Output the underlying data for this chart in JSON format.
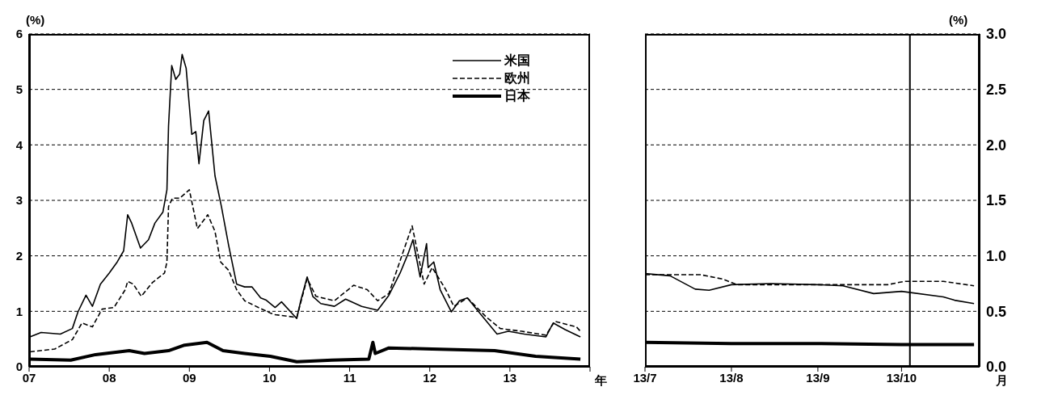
{
  "chart_data": [
    {
      "type": "line",
      "ylabel": "(%)",
      "xlabel": "年",
      "xlim": [
        2007,
        2014
      ],
      "xticks": [
        {
          "value": 2007,
          "label": "07"
        },
        {
          "value": 2008,
          "label": "08"
        },
        {
          "value": 2009,
          "label": "09"
        },
        {
          "value": 2010,
          "label": "10"
        },
        {
          "value": 2011,
          "label": "11"
        },
        {
          "value": 2012,
          "label": "12"
        },
        {
          "value": 2013,
          "label": "13"
        },
        {
          "value": 2014,
          "label": null
        }
      ],
      "ylim": [
        0,
        6
      ],
      "yticks": [
        0,
        1,
        2,
        3,
        4,
        5,
        6
      ],
      "grid": "y",
      "legend": "top right",
      "series": [
        {
          "name": "米国",
          "color": "#000000",
          "line_style": "solid",
          "x": [
            2007.01,
            2007.15,
            2007.39,
            2007.54,
            2007.61,
            2007.71,
            2007.79,
            2007.89,
            2008.0,
            2008.1,
            2008.18,
            2008.23,
            2008.28,
            2008.39,
            2008.49,
            2008.57,
            2008.67,
            2008.72,
            2008.74,
            2008.78,
            2008.83,
            2008.88,
            2008.91,
            2008.96,
            2009.03,
            2009.08,
            2009.12,
            2009.18,
            2009.24,
            2009.32,
            2009.4,
            2009.49,
            2009.59,
            2009.69,
            2009.78,
            2009.89,
            2009.96,
            2010.07,
            2010.15,
            2010.34,
            2010.39,
            2010.47,
            2010.54,
            2010.64,
            2010.81,
            2010.95,
            2011.15,
            2011.35,
            2011.49,
            2011.63,
            2011.73,
            2011.79,
            2011.88,
            2011.96,
            2011.98,
            2012.05,
            2012.13,
            2012.27,
            2012.37,
            2012.47,
            2012.64,
            2012.84,
            2012.98,
            2013.18,
            2013.45,
            2013.54,
            2013.69,
            2013.88
          ],
          "values": [
            0.54,
            0.62,
            0.59,
            0.69,
            0.99,
            1.29,
            1.09,
            1.49,
            1.69,
            1.89,
            2.09,
            2.74,
            2.59,
            2.14,
            2.29,
            2.59,
            2.79,
            3.19,
            4.34,
            5.43,
            5.18,
            5.28,
            5.63,
            5.38,
            4.19,
            4.24,
            3.66,
            4.44,
            4.61,
            3.44,
            2.89,
            2.19,
            1.49,
            1.44,
            1.44,
            1.24,
            1.2,
            1.07,
            1.17,
            0.87,
            1.19,
            1.62,
            1.27,
            1.14,
            1.09,
            1.22,
            1.09,
            1.02,
            1.29,
            1.69,
            2.04,
            2.29,
            1.62,
            2.22,
            1.79,
            1.89,
            1.39,
            0.99,
            1.19,
            1.24,
            0.94,
            0.59,
            0.64,
            0.59,
            0.54,
            0.79,
            0.67,
            0.54
          ]
        },
        {
          "name": "欧州",
          "color": "#000000",
          "line_style": "dashed",
          "x": [
            2007.01,
            2007.32,
            2007.54,
            2007.66,
            2007.79,
            2007.91,
            2008.06,
            2008.2,
            2008.23,
            2008.3,
            2008.4,
            2008.54,
            2008.69,
            2008.72,
            2008.74,
            2008.79,
            2008.88,
            2009.0,
            2009.1,
            2009.23,
            2009.32,
            2009.39,
            2009.49,
            2009.59,
            2009.69,
            2009.86,
            2010.01,
            2010.07,
            2010.34,
            2010.47,
            2010.58,
            2010.81,
            2011.05,
            2011.22,
            2011.35,
            2011.49,
            2011.66,
            2011.78,
            2011.93,
            2012.03,
            2012.2,
            2012.3,
            2012.47,
            2012.71,
            2012.88,
            2013.15,
            2013.45,
            2013.56,
            2013.83,
            2013.88
          ],
          "values": [
            0.27,
            0.32,
            0.49,
            0.79,
            0.72,
            1.04,
            1.07,
            1.39,
            1.54,
            1.49,
            1.27,
            1.52,
            1.69,
            1.89,
            2.89,
            3.04,
            3.04,
            3.19,
            2.49,
            2.74,
            2.44,
            1.89,
            1.74,
            1.39,
            1.19,
            1.07,
            0.97,
            0.94,
            0.89,
            1.59,
            1.27,
            1.19,
            1.47,
            1.39,
            1.19,
            1.32,
            2.04,
            2.54,
            1.49,
            1.79,
            1.39,
            1.09,
            1.24,
            0.89,
            0.69,
            0.64,
            0.57,
            0.82,
            0.72,
            0.64
          ]
        },
        {
          "name": "日本",
          "color": "#000000",
          "line_style": "solid",
          "x": [
            2007.01,
            2007.52,
            2007.83,
            2008.25,
            2008.44,
            2008.74,
            2008.94,
            2009.22,
            2009.42,
            2009.69,
            2010.01,
            2010.34,
            2010.78,
            2011.24,
            2011.29,
            2011.32,
            2011.49,
            2012.03,
            2012.81,
            2013.32,
            2013.88
          ],
          "values": [
            0.14,
            0.12,
            0.22,
            0.29,
            0.24,
            0.29,
            0.39,
            0.44,
            0.29,
            0.24,
            0.19,
            0.09,
            0.12,
            0.14,
            0.44,
            0.24,
            0.34,
            0.32,
            0.29,
            0.19,
            0.14
          ]
        }
      ]
    },
    {
      "type": "line",
      "ylabel": "(%)",
      "xlabel": "月",
      "xlim": [
        "--07-01",
        "--10-29"
      ],
      "xticks": [
        {
          "value": "--07-01",
          "label": "13/7"
        },
        {
          "value": "--08-01",
          "label": "13/8"
        },
        {
          "value": "--09-01",
          "label": "13/9"
        },
        {
          "value": "--10-01",
          "label": "13/10"
        }
      ],
      "ylim": [
        0,
        3
      ],
      "yticks": [
        {
          "value": 0,
          "label": "0.0"
        },
        {
          "value": 0.5,
          "label": "0.5"
        },
        {
          "value": 1,
          "label": "1.0"
        },
        {
          "value": 1.5,
          "label": "1.5"
        },
        {
          "value": 2,
          "label": "2.0"
        },
        {
          "value": 2.5,
          "label": "2.5"
        },
        {
          "value": 3,
          "label": "3.0"
        }
      ],
      "grid": "y",
      "ref_lines": [
        {
          "axis": "x",
          "value": "--10-04",
          "color": "#000000"
        }
      ],
      "series": [
        {
          "color": "#000000",
          "line_style": "solid",
          "x": [
            "--07-01",
            "--07-10",
            "--07-19",
            "--07-24",
            "--08-01",
            "--08-15",
            "--09-01",
            "--09-10",
            "--09-21",
            "--10-01",
            "--10-16",
            "--10-20",
            "--10-27"
          ],
          "values": [
            0.84,
            0.82,
            0.7,
            0.69,
            0.74,
            0.75,
            0.74,
            0.73,
            0.66,
            0.68,
            0.63,
            0.6,
            0.57
          ]
        },
        {
          "color": "#000000",
          "line_style": "dashed",
          "x": [
            "--07-01",
            "--07-21",
            "--07-29",
            "--08-03",
            "--09-26",
            "--10-02",
            "--10-16",
            "--10-27"
          ],
          "values": [
            0.83,
            0.83,
            0.79,
            0.74,
            0.74,
            0.77,
            0.77,
            0.73
          ]
        },
        {
          "color": "#000000",
          "line_style": "solid",
          "x": [
            "--07-01",
            "--08-01",
            "--09-01",
            "--10-01",
            "--10-27"
          ],
          "values": [
            0.22,
            0.21,
            0.21,
            0.2,
            0.2
          ]
        }
      ]
    }
  ]
}
